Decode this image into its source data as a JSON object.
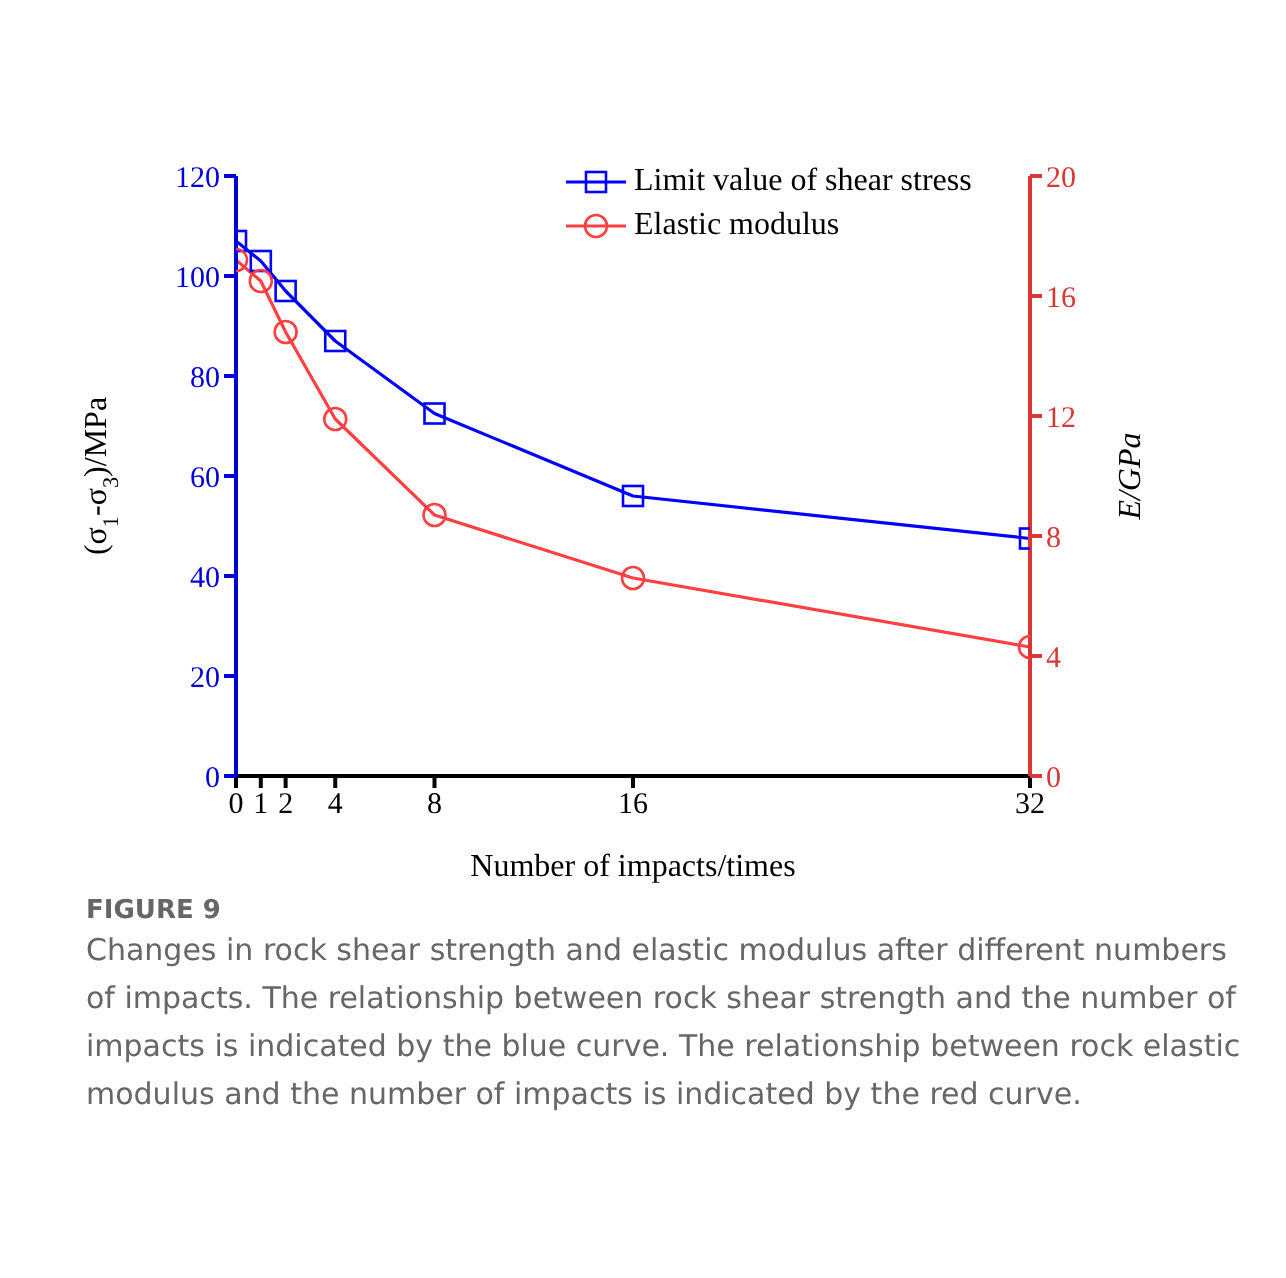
{
  "chart_data": {
    "type": "line",
    "title": "FIGURE 9",
    "subtitle": "Changes in rock shear strength and elastic modulus after different numbers of impacts. The relationship between rock shear strength and the number of impacts is indicated by the blue curve. The relationship between rock elastic modulus and the number of impacts is indicated by the red curve.",
    "xlabel": "Number of impacts/times",
    "ylabel": "(σ$_{1}$-σ$_{3}$)/MPa",
    "y2label": "E/GPa",
    "x": [
      0,
      1,
      2,
      4,
      8,
      16,
      32
    ],
    "xlim": [
      0,
      32
    ],
    "xticks": [
      0,
      1,
      2,
      4,
      8,
      16,
      32
    ],
    "ylim": [
      0,
      120
    ],
    "yticks": [
      0,
      20,
      40,
      60,
      80,
      100,
      120
    ],
    "y2lim": [
      0,
      20
    ],
    "y2ticks": [
      0,
      4,
      8,
      12,
      16,
      20
    ],
    "legend": "top",
    "grid": false,
    "series": [
      {
        "name": "Limit value of shear stress",
        "color": "#0000ff",
        "marker": "square",
        "values": [
          107,
          103,
          97,
          87,
          72.5,
          56,
          47.5
        ]
      },
      {
        "name": "Elastic modulus",
        "color": "#ff4040",
        "marker": "circle",
        "axis": "y2",
        "values": [
          17.2,
          16.5,
          14.8,
          11.9,
          8.7,
          6.6,
          4.3
        ]
      }
    ]
  }
}
